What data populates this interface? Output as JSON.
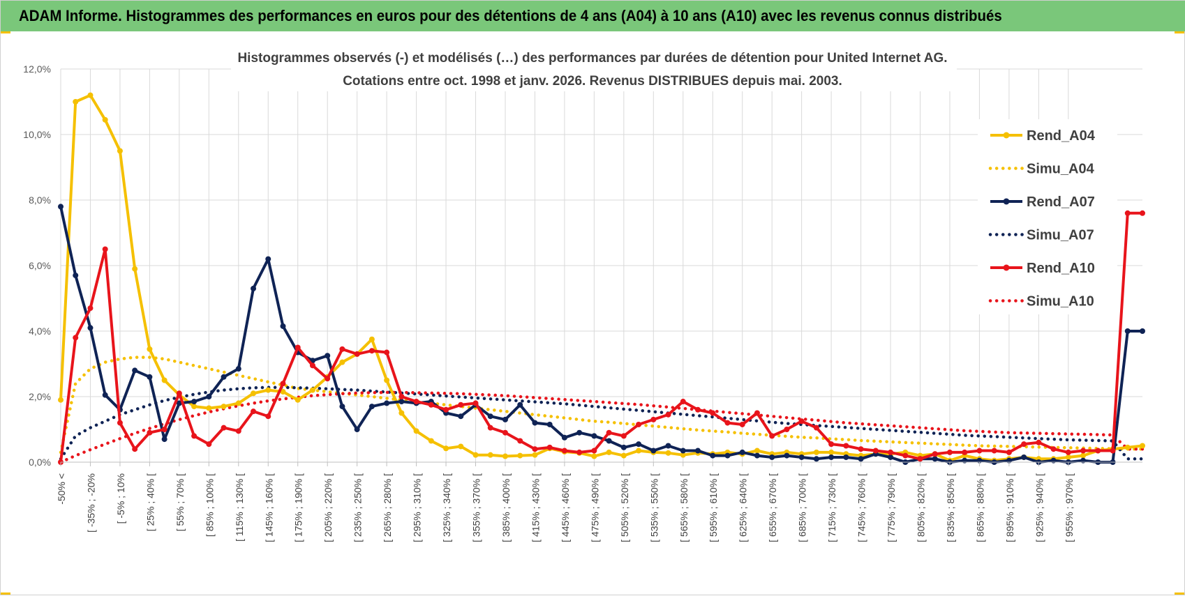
{
  "header": {
    "title": "ADAM Informe. Histogrammes des performances en euros pour des détentions de 4 ans (A04) à 10 ans (A10) avec les revenus connus distribués"
  },
  "colors": {
    "banner": "#7ac77a",
    "accent": "#f5c000",
    "A04": "#f5c000",
    "A07": "#0f2355",
    "A10": "#e8141b",
    "grid": "#d9d9d9"
  },
  "chart_data": {
    "type": "line",
    "title_line1": "Histogrammes observés (-) et modélisés (…) des performances par durées de détention pour United Internet AG.",
    "title_line2": "Cotations entre oct. 1998 et janv. 2026.  Revenus DISTRIBUES depuis mai. 2003.",
    "ylim": [
      0,
      12
    ],
    "yticks": [
      0,
      2,
      4,
      6,
      8,
      10,
      12
    ],
    "ytick_labels": [
      "0,0%",
      "2,0%",
      "4,0%",
      "6,0%",
      "8,0%",
      "10,0%",
      "12,0%"
    ],
    "x_labels": [
      "-50% <",
      "[ -35% ; -20%",
      "[ -5% ; 10%",
      "[ 25% ; 40% [",
      "[ 55% ; 70% [",
      "[ 85% ; 100% [",
      "[ 115% ; 130% [",
      "[ 145% ; 160% [",
      "[ 175% ; 190% [",
      "[ 205% ; 220% [",
      "[ 235% ; 250% [",
      "[ 265% ; 280% [",
      "[ 295% ; 310% [",
      "[ 325% ; 340% [",
      "[ 355% ; 370% [",
      "[ 385% ; 400% [",
      "[ 415% ; 430% [",
      "[ 445% ; 460% [",
      "[ 475% ; 490% [",
      "[ 505% ; 520% [",
      "[ 535% ; 550% [",
      "[ 565% ; 580% [",
      "[ 595% ; 610% [",
      "[ 625% ; 640% [",
      "[ 655% ; 670% [",
      "[ 685% ; 700% [",
      "[ 715% ; 730% [",
      "[ 745% ; 760% [",
      "[ 775% ; 790% [",
      "[ 805% ; 820% [",
      "[ 835% ; 850% [",
      "[ 865% ; 880% [",
      "[ 895% ; 910% [",
      "[ 925% ; 940% [",
      "[ 955% ; 970% ["
    ],
    "label_every": 2,
    "series": [
      {
        "name": "Rend_A04",
        "style": "solid",
        "color": "#f5c000",
        "values": [
          1.9,
          11.0,
          11.2,
          10.45,
          9.5,
          5.9,
          3.45,
          2.5,
          2.05,
          1.7,
          1.65,
          1.7,
          1.8,
          2.1,
          2.2,
          2.15,
          1.9,
          2.2,
          2.6,
          3.05,
          3.3,
          3.75,
          2.5,
          1.5,
          0.95,
          0.65,
          0.42,
          0.48,
          0.22,
          0.22,
          0.18,
          0.2,
          0.22,
          0.42,
          0.32,
          0.28,
          0.18,
          0.3,
          0.2,
          0.35,
          0.3,
          0.28,
          0.22,
          0.28,
          0.25,
          0.3,
          0.25,
          0.35,
          0.25,
          0.3,
          0.25,
          0.3,
          0.3,
          0.25,
          0.2,
          0.25,
          0.25,
          0.3,
          0.2,
          0.25,
          0.05,
          0.2,
          0.1,
          0.05,
          0.1,
          0.15,
          0.1,
          0.1,
          0.15,
          0.2,
          0.35,
          0.4,
          0.45,
          0.5
        ]
      },
      {
        "name": "Simu_A04",
        "style": "dotted",
        "color": "#f5c000",
        "values": [
          0.3,
          2.4,
          2.85,
          3.05,
          3.15,
          3.2,
          3.2,
          3.15,
          3.05,
          2.95,
          2.85,
          2.75,
          2.65,
          2.55,
          2.45,
          2.35,
          2.25,
          2.2,
          2.15,
          2.1,
          2.05,
          2.0,
          1.95,
          1.9,
          1.85,
          1.8,
          1.75,
          1.7,
          1.65,
          1.6,
          1.55,
          1.5,
          1.45,
          1.4,
          1.35,
          1.3,
          1.25,
          1.22,
          1.18,
          1.14,
          1.1,
          1.06,
          1.02,
          0.98,
          0.95,
          0.92,
          0.88,
          0.85,
          0.82,
          0.79,
          0.76,
          0.74,
          0.71,
          0.69,
          0.66,
          0.64,
          0.62,
          0.6,
          0.58,
          0.56,
          0.54,
          0.52,
          0.5,
          0.49,
          0.48,
          0.47,
          0.46,
          0.45,
          0.44,
          0.43,
          0.42,
          0.41,
          0.4,
          0.4
        ]
      },
      {
        "name": "Rend_A07",
        "style": "solid",
        "color": "#0f2355",
        "values": [
          7.8,
          5.7,
          4.1,
          2.05,
          1.6,
          2.8,
          2.6,
          0.7,
          1.8,
          1.85,
          2.0,
          2.6,
          2.85,
          5.3,
          6.2,
          4.15,
          3.35,
          3.1,
          3.25,
          1.7,
          1.0,
          1.7,
          1.8,
          1.85,
          1.8,
          1.85,
          1.5,
          1.4,
          1.75,
          1.4,
          1.3,
          1.75,
          1.2,
          1.15,
          0.75,
          0.9,
          0.8,
          0.65,
          0.45,
          0.55,
          0.35,
          0.5,
          0.35,
          0.35,
          0.2,
          0.2,
          0.3,
          0.2,
          0.15,
          0.2,
          0.15,
          0.1,
          0.15,
          0.15,
          0.1,
          0.25,
          0.15,
          0.0,
          0.1,
          0.1,
          0.0,
          0.05,
          0.05,
          0.0,
          0.05,
          0.15,
          0.0,
          0.05,
          0.0,
          0.05,
          0.0,
          0.0,
          4.0,
          4.0
        ]
      },
      {
        "name": "Simu_A07",
        "style": "dotted",
        "color": "#0f2355",
        "values": [
          0.1,
          0.8,
          1.05,
          1.25,
          1.45,
          1.6,
          1.75,
          1.88,
          1.98,
          2.07,
          2.14,
          2.2,
          2.24,
          2.27,
          2.28,
          2.28,
          2.27,
          2.26,
          2.24,
          2.22,
          2.2,
          2.17,
          2.14,
          2.11,
          2.08,
          2.05,
          2.02,
          1.99,
          1.96,
          1.93,
          1.9,
          1.87,
          1.84,
          1.81,
          1.78,
          1.74,
          1.7,
          1.66,
          1.62,
          1.58,
          1.54,
          1.5,
          1.46,
          1.42,
          1.38,
          1.34,
          1.3,
          1.26,
          1.22,
          1.18,
          1.15,
          1.12,
          1.09,
          1.06,
          1.03,
          1.0,
          0.97,
          0.94,
          0.91,
          0.88,
          0.85,
          0.82,
          0.8,
          0.78,
          0.76,
          0.74,
          0.72,
          0.7,
          0.68,
          0.67,
          0.66,
          0.65,
          0.1,
          0.1
        ]
      },
      {
        "name": "Rend_A10",
        "style": "solid",
        "color": "#e8141b",
        "values": [
          0.0,
          3.8,
          4.7,
          6.5,
          1.2,
          0.4,
          0.9,
          1.0,
          2.1,
          0.8,
          0.55,
          1.05,
          0.95,
          1.55,
          1.4,
          2.4,
          3.5,
          2.95,
          2.55,
          3.45,
          3.3,
          3.4,
          3.35,
          2.0,
          1.85,
          1.75,
          1.6,
          1.75,
          1.8,
          1.05,
          0.9,
          0.65,
          0.4,
          0.45,
          0.35,
          0.3,
          0.35,
          0.9,
          0.8,
          1.15,
          1.3,
          1.45,
          1.85,
          1.6,
          1.5,
          1.2,
          1.15,
          1.5,
          0.8,
          1.0,
          1.25,
          1.05,
          0.55,
          0.5,
          0.4,
          0.35,
          0.3,
          0.2,
          0.1,
          0.25,
          0.3,
          0.3,
          0.35,
          0.35,
          0.3,
          0.55,
          0.6,
          0.4,
          0.3,
          0.35,
          0.35,
          0.35,
          7.6,
          7.6
        ]
      },
      {
        "name": "Simu_A10",
        "style": "dotted",
        "color": "#e8141b",
        "values": [
          0.0,
          0.2,
          0.38,
          0.55,
          0.72,
          0.88,
          1.03,
          1.17,
          1.3,
          1.42,
          1.53,
          1.63,
          1.72,
          1.8,
          1.87,
          1.93,
          1.98,
          2.03,
          2.06,
          2.09,
          2.11,
          2.12,
          2.13,
          2.13,
          2.12,
          2.11,
          2.1,
          2.09,
          2.07,
          2.05,
          2.03,
          2.0,
          1.97,
          1.94,
          1.91,
          1.88,
          1.85,
          1.82,
          1.79,
          1.76,
          1.72,
          1.68,
          1.64,
          1.6,
          1.56,
          1.52,
          1.48,
          1.44,
          1.4,
          1.36,
          1.32,
          1.28,
          1.24,
          1.2,
          1.17,
          1.14,
          1.11,
          1.08,
          1.05,
          1.02,
          0.99,
          0.96,
          0.94,
          0.92,
          0.9,
          0.89,
          0.88,
          0.87,
          0.86,
          0.85,
          0.84,
          0.83,
          0.4,
          0.4
        ]
      }
    ],
    "legend_position": "right"
  }
}
